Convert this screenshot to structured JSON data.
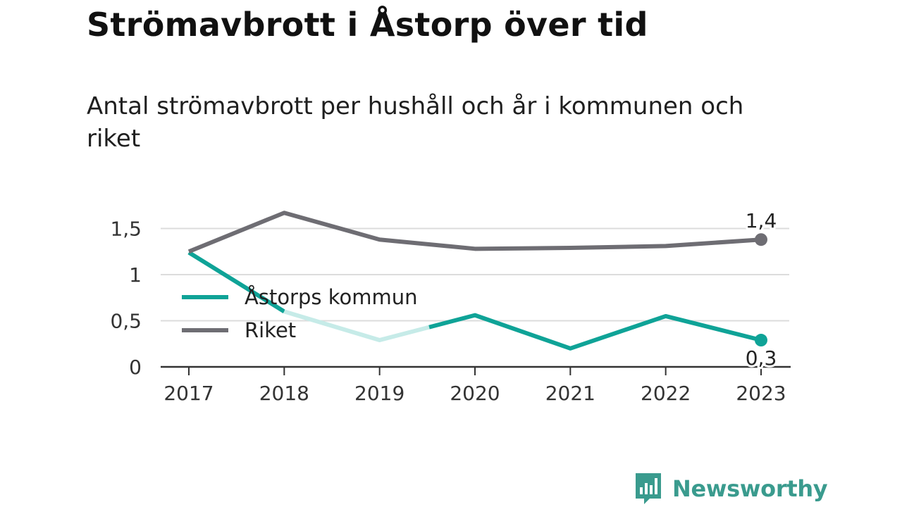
{
  "title": "Strömavbrott i Åstorp över tid",
  "subtitle": "Antal strömavbrott per hushåll och år i kommunen och riket",
  "brand": {
    "name": "Newsworthy",
    "icon": "bar-chart-speech-bubble-icon",
    "color": "#3a9b8e"
  },
  "chart_data": {
    "type": "line",
    "x": [
      "2017",
      "2018",
      "2019",
      "2020",
      "2021",
      "2022",
      "2023"
    ],
    "ylim": [
      0,
      1.67
    ],
    "yticks": [
      0,
      0.5,
      1,
      1.5
    ],
    "ytick_labels": [
      "0",
      "0,5",
      "1",
      "1,5"
    ],
    "grid": true,
    "legend": "left",
    "series": [
      {
        "name": "Åstorps kommun",
        "color": "#0fa397",
        "values": [
          1.24,
          0.6,
          0.29,
          0.56,
          0.2,
          0.55,
          0.29
        ],
        "end_label": "0,3",
        "note": "segment between 2018 and mid-2020 drawn faded"
      },
      {
        "name": "Riket",
        "color": "#6e6d73",
        "values": [
          1.25,
          1.67,
          1.38,
          1.28,
          1.29,
          1.31,
          1.38
        ],
        "end_label": "1,4"
      }
    ]
  }
}
